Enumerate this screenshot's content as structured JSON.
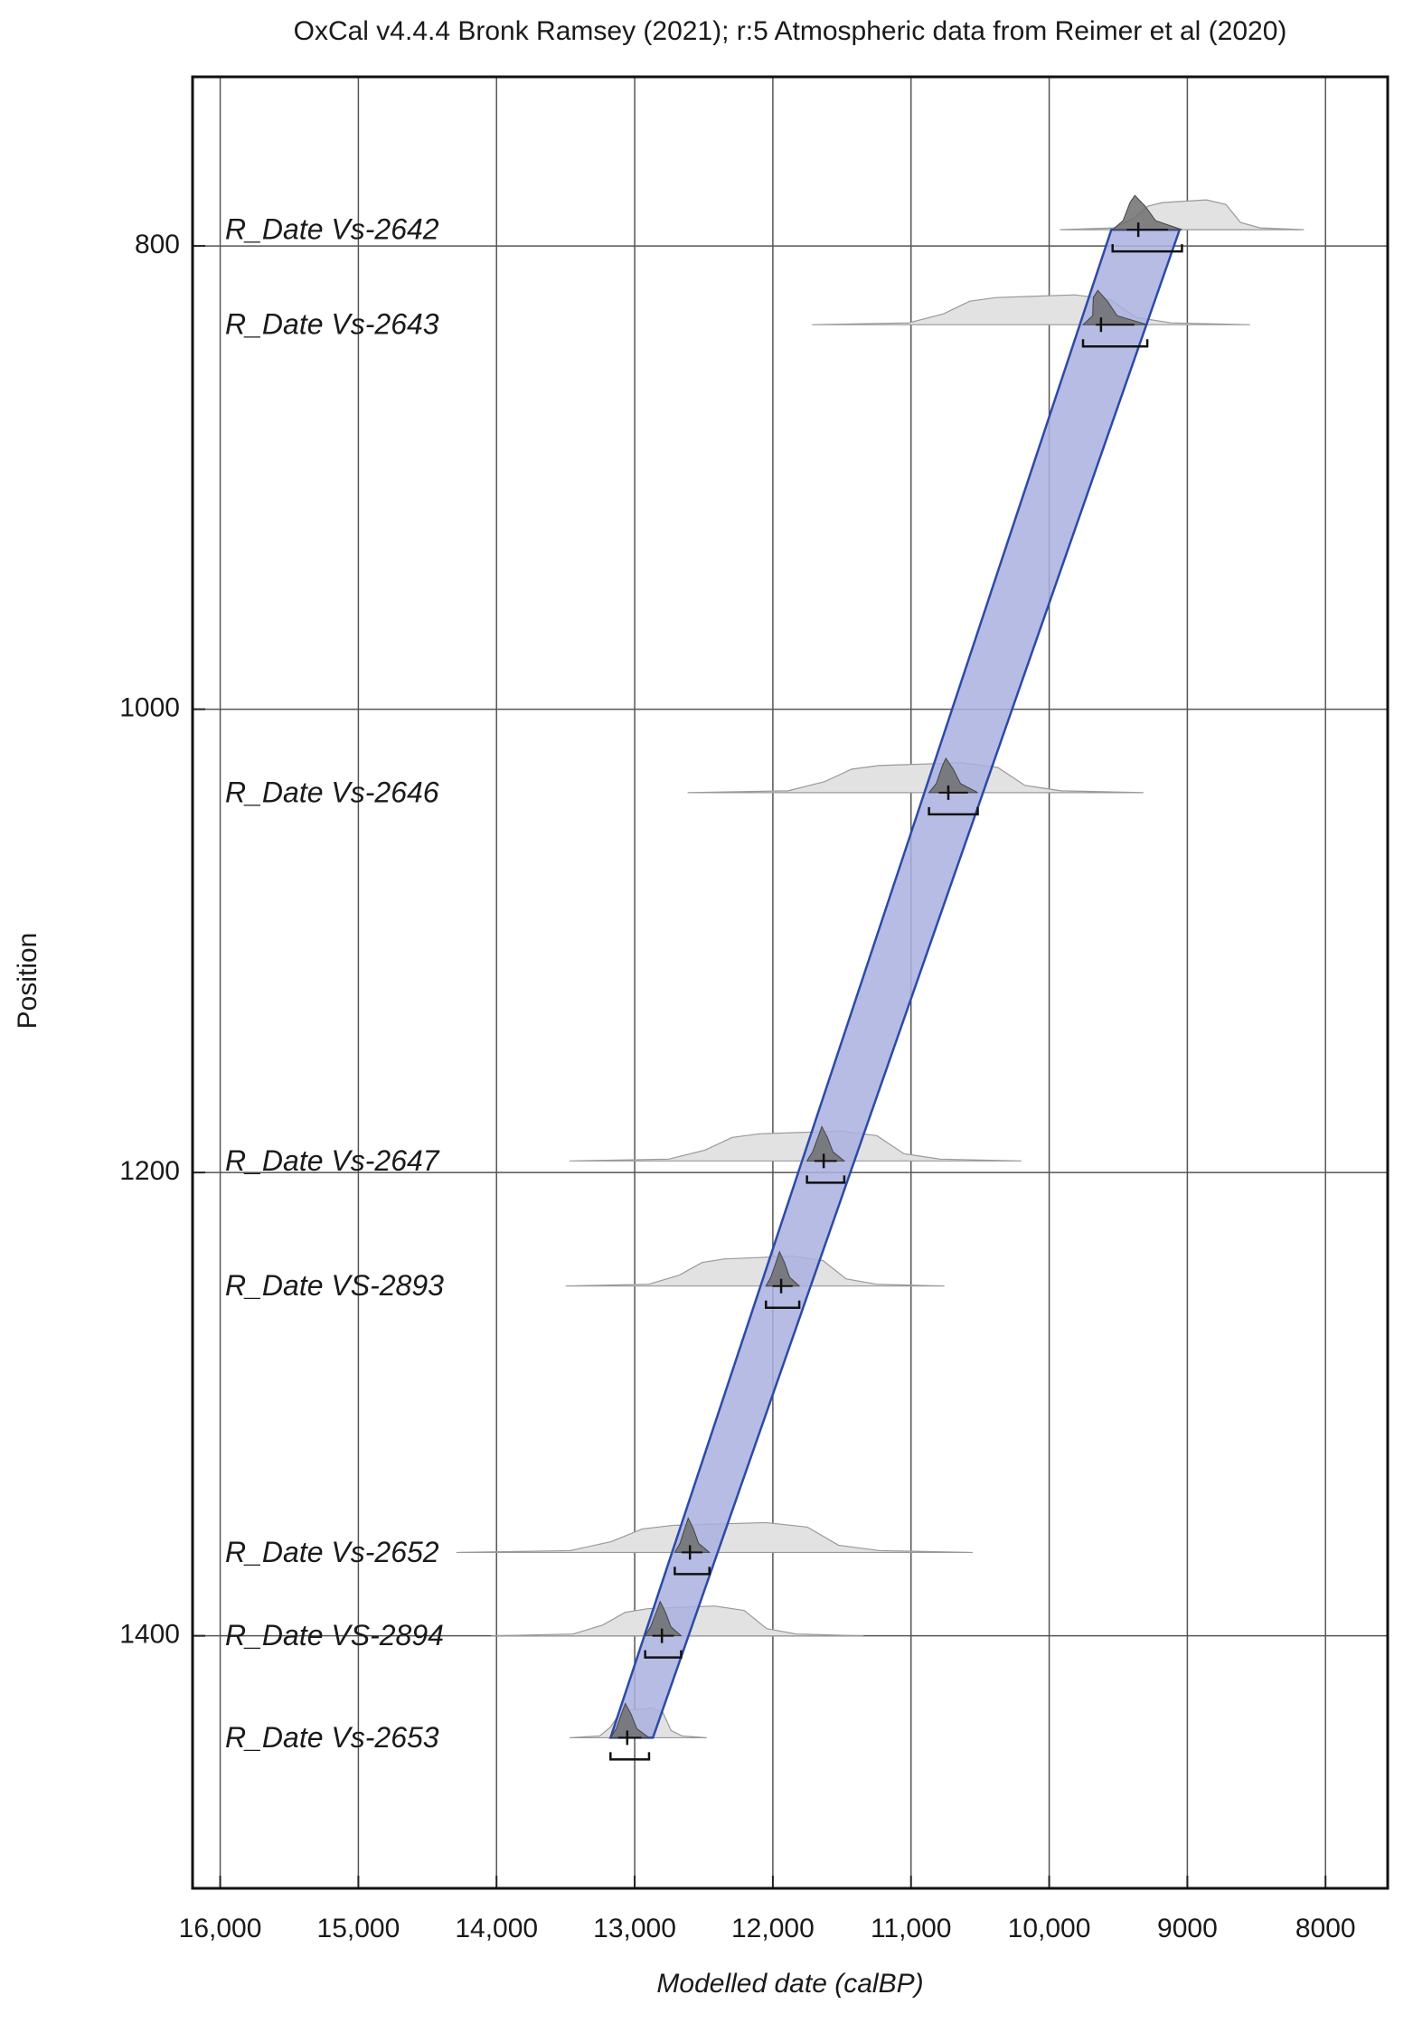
{
  "chart_data": {
    "type": "oxcal",
    "title": "OxCal v4.4.4 Bronk Ramsey (2021); r:5 Atmospheric data from Reimer et al (2020)",
    "xlabel": "Modelled date (calBP)",
    "ylabel": "Position",
    "xlim": [
      16200,
      7550
    ],
    "ylim": [
      727,
      1509
    ],
    "y_reversed": true,
    "xticks": [
      {
        "value": 16000,
        "label": "16,000"
      },
      {
        "value": 15000,
        "label": "15,000"
      },
      {
        "value": 14000,
        "label": "14,000"
      },
      {
        "value": 13000,
        "label": "13,000"
      },
      {
        "value": 12000,
        "label": "12,000"
      },
      {
        "value": 11000,
        "label": "11,000"
      },
      {
        "value": 10000,
        "label": "10,000"
      },
      9000,
      8000
    ],
    "yticks": [
      800,
      1000,
      1200,
      1400
    ],
    "grid": true,
    "band": {
      "color": "#aab0df",
      "edge_color": "#2c4aa8",
      "start_position": 793,
      "end_position": 1444,
      "start_range": [
        9550,
        9056
      ],
      "end_range": [
        13175,
        12868
      ]
    },
    "likelihood_color": "#e2e2e2",
    "posterior_color": "#6e6e6e",
    "dates": [
      {
        "label": "R_Date Vs-2642",
        "position": 793,
        "likelihood": [
          9922,
          8156
        ],
        "modelled": 9355,
        "range": [
          9541,
          9039
        ]
      },
      {
        "label": "R_Date Vs-2643",
        "position": 834,
        "likelihood": [
          11716,
          8546
        ],
        "modelled": 9625,
        "range": [
          9755,
          9290
        ]
      },
      {
        "label": "R_Date Vs-2646",
        "position": 1036,
        "likelihood": [
          12617,
          9318
        ],
        "modelled": 10730,
        "range": [
          10870,
          10517
        ]
      },
      {
        "label": "R_Date Vs-2647",
        "position": 1195,
        "likelihood": [
          13472,
          10201
        ],
        "modelled": 11632,
        "range": [
          11753,
          11483
        ]
      },
      {
        "label": "R_Date VS-2893",
        "position": 1249,
        "likelihood": [
          13500,
          10758
        ],
        "modelled": 11940,
        "range": [
          12050,
          11809
        ]
      },
      {
        "label": "R_Date Vs-2652",
        "position": 1364,
        "likelihood": [
          14290,
          10554
        ],
        "modelled": 12600,
        "range": [
          12710,
          12459
        ]
      },
      {
        "label": "R_Date VS-2894",
        "position": 1400,
        "likelihood": [
          14039,
          11344
        ],
        "modelled": 12803,
        "range": [
          12924,
          12664
        ]
      },
      {
        "label": "R_Date Vs-2653",
        "position": 1444,
        "likelihood": [
          13472,
          12478
        ],
        "modelled": 13054,
        "range": [
          13175,
          12896
        ]
      }
    ]
  }
}
